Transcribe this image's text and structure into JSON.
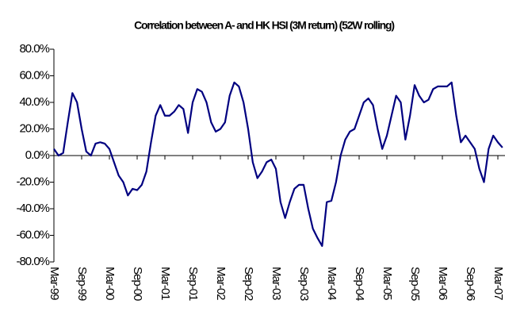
{
  "chart_data": {
    "type": "line",
    "title": "Correlation between A- and HK HSI (3M return) (52W rolling)",
    "categories": [
      "Mar-99",
      null,
      null,
      null,
      null,
      null,
      "Sep-99",
      null,
      null,
      null,
      null,
      null,
      "Mar-00",
      null,
      null,
      null,
      null,
      null,
      "Sep-00",
      null,
      null,
      null,
      null,
      null,
      "Mar-01",
      null,
      null,
      null,
      null,
      null,
      "Sep-01",
      null,
      null,
      null,
      null,
      null,
      "Mar-02",
      null,
      null,
      null,
      null,
      null,
      "Sep-02",
      null,
      null,
      null,
      null,
      null,
      "Mar-03",
      null,
      null,
      null,
      null,
      null,
      "Sep-03",
      null,
      null,
      null,
      null,
      null,
      "Mar-04",
      null,
      null,
      null,
      null,
      null,
      "Sep-04",
      null,
      null,
      null,
      null,
      null,
      "Mar-05",
      null,
      null,
      null,
      null,
      null,
      "Sep-05",
      null,
      null,
      null,
      null,
      null,
      "Mar-06",
      null,
      null,
      null,
      null,
      null,
      "Sep-06",
      null,
      null,
      null,
      null,
      null,
      "Mar-07",
      null
    ],
    "series": [
      {
        "color": "#000080",
        "values": [
          5,
          0,
          2,
          25,
          47,
          40,
          20,
          3,
          0,
          9,
          10,
          9,
          5,
          -5,
          -15,
          -20,
          -30,
          -25,
          -26,
          -22,
          -12,
          10,
          30,
          38,
          30,
          30,
          33,
          38,
          35,
          17,
          40,
          50,
          48,
          40,
          25,
          18,
          20,
          25,
          45,
          55,
          52,
          40,
          20,
          -5,
          -17,
          -12,
          -5,
          -3,
          -10,
          -35,
          -47,
          -35,
          -25,
          -22,
          -22,
          -40,
          -55,
          -62,
          -68,
          -35,
          -34,
          -20,
          0,
          12,
          18,
          20,
          30,
          40,
          43,
          38,
          20,
          5,
          15,
          30,
          45,
          40,
          12,
          30,
          53,
          45,
          40,
          42,
          50,
          52,
          52,
          52,
          55,
          30,
          10,
          15,
          10,
          5,
          -10,
          -20,
          5,
          15,
          10,
          6
        ]
      }
    ],
    "ylim": [
      -80,
      80
    ],
    "yticks": [
      {
        "value": -80,
        "label": "-80.0%"
      },
      {
        "value": -60,
        "label": "-60.0%"
      },
      {
        "value": -40,
        "label": "-40.0%"
      },
      {
        "value": -20,
        "label": "-20.0%"
      },
      {
        "value": 0,
        "label": "0.0%"
      },
      {
        "value": 20,
        "label": "20.0%"
      },
      {
        "value": 40,
        "label": "40.0%"
      },
      {
        "value": 60,
        "label": "60.0%"
      },
      {
        "value": 80,
        "label": "80.0%"
      }
    ]
  }
}
